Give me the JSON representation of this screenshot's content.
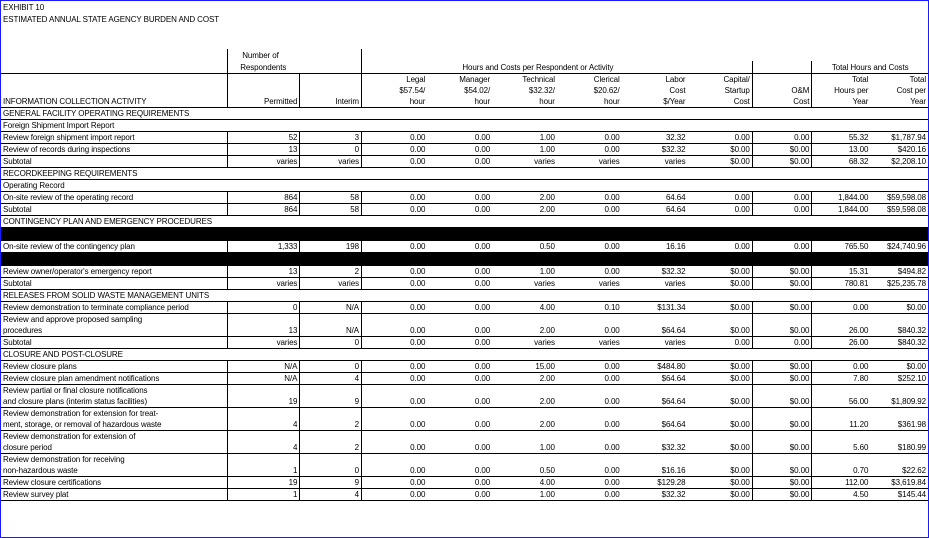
{
  "exhibit": "EXHIBIT 10",
  "title": "ESTIMATED ANNUAL STATE AGENCY BURDEN AND COST",
  "header": {
    "number_of": "Number of",
    "respondents": "Respondents",
    "hours_costs": "Hours and Costs per Respondent or Activity",
    "total_hours_costs": "Total Hours and Costs",
    "activity": "INFORMATION COLLECTION ACTIVITY",
    "permitted": "Permitted",
    "interim": "Interim",
    "legal": [
      "Legal",
      "$57.54/",
      "hour"
    ],
    "manager": [
      "Manager",
      "$54.02/",
      "hour"
    ],
    "technical": [
      "Technical",
      "$32.32/",
      "hour"
    ],
    "clerical": [
      "Clerical",
      "$20.62/",
      "hour"
    ],
    "labor": [
      "Labor",
      "Cost",
      "$/Year"
    ],
    "capital": [
      "Capital/",
      "Startup",
      "Cost"
    ],
    "om": [
      "O&M",
      "Cost"
    ],
    "total_hours": [
      "Total",
      "Hours per",
      "Year"
    ],
    "total_cost": [
      "Total",
      "Cost per",
      "Year"
    ]
  },
  "sections": [
    {
      "title": "GENERAL FACILITY OPERATING REQUIREMENTS",
      "subtitle": "Foreign Shipment Import Report",
      "rows": [
        {
          "activity": "Review foreign shipment import report",
          "permitted": "52",
          "interim": "3",
          "legal": "0.00",
          "manager": "0.00",
          "technical": "1.00",
          "clerical": "0.00",
          "labor": "32.32",
          "capital": "0.00",
          "om": "0.00",
          "hours": "55.32",
          "cost": "$1,787.94"
        },
        {
          "activity": "Review of records during inspections",
          "permitted": "13",
          "interim": "0",
          "legal": "0.00",
          "manager": "0.00",
          "technical": "1.00",
          "clerical": "0.00",
          "labor": "$32.32",
          "capital": "$0.00",
          "om": "$0.00",
          "hours": "13.00",
          "cost": "$420.16"
        },
        {
          "activity": "Subtotal",
          "subtotal": true,
          "permitted": "varies",
          "interim": "varies",
          "legal": "0.00",
          "manager": "0.00",
          "technical": "varies",
          "clerical": "varies",
          "labor": "varies",
          "capital": "$0.00",
          "om": "$0.00",
          "hours": "68.32",
          "cost": "$2,208.10"
        }
      ]
    },
    {
      "title": "RECORDKEEPING REQUIREMENTS",
      "subtitle": "Operating Record",
      "rows": [
        {
          "activity": "On-site review of the operating record",
          "permitted": "864",
          "interim": "58",
          "legal": "0.00",
          "manager": "0.00",
          "technical": "2.00",
          "clerical": "0.00",
          "labor": "64.64",
          "capital": "0.00",
          "om": "0.00",
          "hours": "1,844.00",
          "cost": "$59,598.08"
        },
        {
          "activity": "Subtotal",
          "subtotal": true,
          "permitted": "864",
          "interim": "58",
          "legal": "0.00",
          "manager": "0.00",
          "technical": "2.00",
          "clerical": "0.00",
          "labor": "64.64",
          "capital": "0.00",
          "om": "0.00",
          "hours": "1,844.00",
          "cost": "$59,598.08"
        }
      ]
    },
    {
      "title": "CONTINGENCY PLAN AND EMERGENCY PROCEDURES",
      "black_before": true,
      "rows": [
        {
          "activity": "On-site review of the contingency plan",
          "permitted": "1,333",
          "interim": "198",
          "legal": "0.00",
          "manager": "0.00",
          "technical": "0.50",
          "clerical": "0.00",
          "labor": "16.16",
          "capital": "0.00",
          "om": "0.00",
          "hours": "765.50",
          "cost": "$24,740.96",
          "black_after": true
        },
        {
          "activity": "Review owner/operator's emergency report",
          "permitted": "13",
          "interim": "2",
          "legal": "0.00",
          "manager": "0.00",
          "technical": "1.00",
          "clerical": "0.00",
          "labor": "$32.32",
          "capital": "$0.00",
          "om": "$0.00",
          "hours": "15.31",
          "cost": "$494.82"
        },
        {
          "activity": "Subtotal",
          "subtotal": true,
          "permitted": "varies",
          "interim": "varies",
          "legal": "0.00",
          "manager": "0.00",
          "technical": "varies",
          "clerical": "varies",
          "labor": "varies",
          "capital": "$0.00",
          "om": "$0.00",
          "hours": "780.81",
          "cost": "$25,235.78"
        }
      ]
    },
    {
      "title": "RELEASES FROM SOLID WASTE MANAGEMENT UNITS",
      "rows": [
        {
          "activity": "Review demonstration to terminate compliance period",
          "permitted": "0",
          "interim": "N/A",
          "legal": "0.00",
          "manager": "0.00",
          "technical": "4.00",
          "clerical": "0.10",
          "labor": "$131.34",
          "capital": "$0.00",
          "om": "$0.00",
          "hours": "0.00",
          "cost": "$0.00"
        },
        {
          "activity": "Review and approve proposed sampling",
          "cont": true
        },
        {
          "activity": "procedures",
          "permitted": "13",
          "interim": "N/A",
          "legal": "0.00",
          "manager": "0.00",
          "technical": "2.00",
          "clerical": "0.00",
          "labor": "$64.64",
          "capital": "$0.00",
          "om": "$0.00",
          "hours": "26.00",
          "cost": "$840.32"
        },
        {
          "activity": "Subtotal",
          "subtotal": true,
          "permitted": "varies",
          "interim": "0",
          "legal": "0.00",
          "manager": "0.00",
          "technical": "varies",
          "clerical": "varies",
          "labor": "varies",
          "capital": "0.00",
          "om": "0.00",
          "hours": "26.00",
          "cost": "$840.32"
        }
      ]
    },
    {
      "title": "CLOSURE AND POST-CLOSURE",
      "rows": [
        {
          "activity": "Review closure plans",
          "permitted": "N/A",
          "interim": "0",
          "legal": "0.00",
          "manager": "0.00",
          "technical": "15.00",
          "clerical": "0.00",
          "labor": "$484.80",
          "capital": "$0.00",
          "om": "$0.00",
          "hours": "0.00",
          "cost": "$0.00"
        },
        {
          "activity": "Review closure plan amendment notifications",
          "permitted": "N/A",
          "interim": "4",
          "legal": "0.00",
          "manager": "0.00",
          "technical": "2.00",
          "clerical": "0.00",
          "labor": "$64.64",
          "capital": "$0.00",
          "om": "$0.00",
          "hours": "7.80",
          "cost": "$252.10"
        },
        {
          "activity": "Review partial or final closure notifications",
          "cont": true
        },
        {
          "activity": "and closure plans (interim status facilities)",
          "permitted": "19",
          "interim": "9",
          "legal": "0.00",
          "manager": "0.00",
          "technical": "2.00",
          "clerical": "0.00",
          "labor": "$64.64",
          "capital": "$0.00",
          "om": "$0.00",
          "hours": "56.00",
          "cost": "$1,809.92"
        },
        {
          "activity": "Review demonstration for extension for treat-",
          "cont": true
        },
        {
          "activity": "ment, storage, or removal of hazardous waste",
          "permitted": "4",
          "interim": "2",
          "legal": "0.00",
          "manager": "0.00",
          "technical": "2.00",
          "clerical": "0.00",
          "labor": "$64.64",
          "capital": "$0.00",
          "om": "$0.00",
          "hours": "11.20",
          "cost": "$361.98"
        },
        {
          "activity": "Review demonstration for extension of",
          "cont": true
        },
        {
          "activity": "closure period",
          "permitted": "4",
          "interim": "2",
          "legal": "0.00",
          "manager": "0.00",
          "technical": "1.00",
          "clerical": "0.00",
          "labor": "$32.32",
          "capital": "$0.00",
          "om": "$0.00",
          "hours": "5.60",
          "cost": "$180.99"
        },
        {
          "activity": "Review demonstration for receiving",
          "cont": true
        },
        {
          "activity": "non-hazardous waste",
          "permitted": "1",
          "interim": "0",
          "legal": "0.00",
          "manager": "0.00",
          "technical": "0.50",
          "clerical": "0.00",
          "labor": "$16.16",
          "capital": "$0.00",
          "om": "$0.00",
          "hours": "0.70",
          "cost": "$22.62"
        },
        {
          "activity": "Review closure certifications",
          "permitted": "19",
          "interim": "9",
          "legal": "0.00",
          "manager": "0.00",
          "technical": "4.00",
          "clerical": "0.00",
          "labor": "$129.28",
          "capital": "$0.00",
          "om": "$0.00",
          "hours": "112.00",
          "cost": "$3,619.84"
        },
        {
          "activity": "Review survey plat",
          "permitted": "1",
          "interim": "4",
          "legal": "0.00",
          "manager": "0.00",
          "technical": "1.00",
          "clerical": "0.00",
          "labor": "$32.32",
          "capital": "$0.00",
          "om": "$0.00",
          "hours": "4.50",
          "cost": "$145.44"
        }
      ]
    }
  ]
}
